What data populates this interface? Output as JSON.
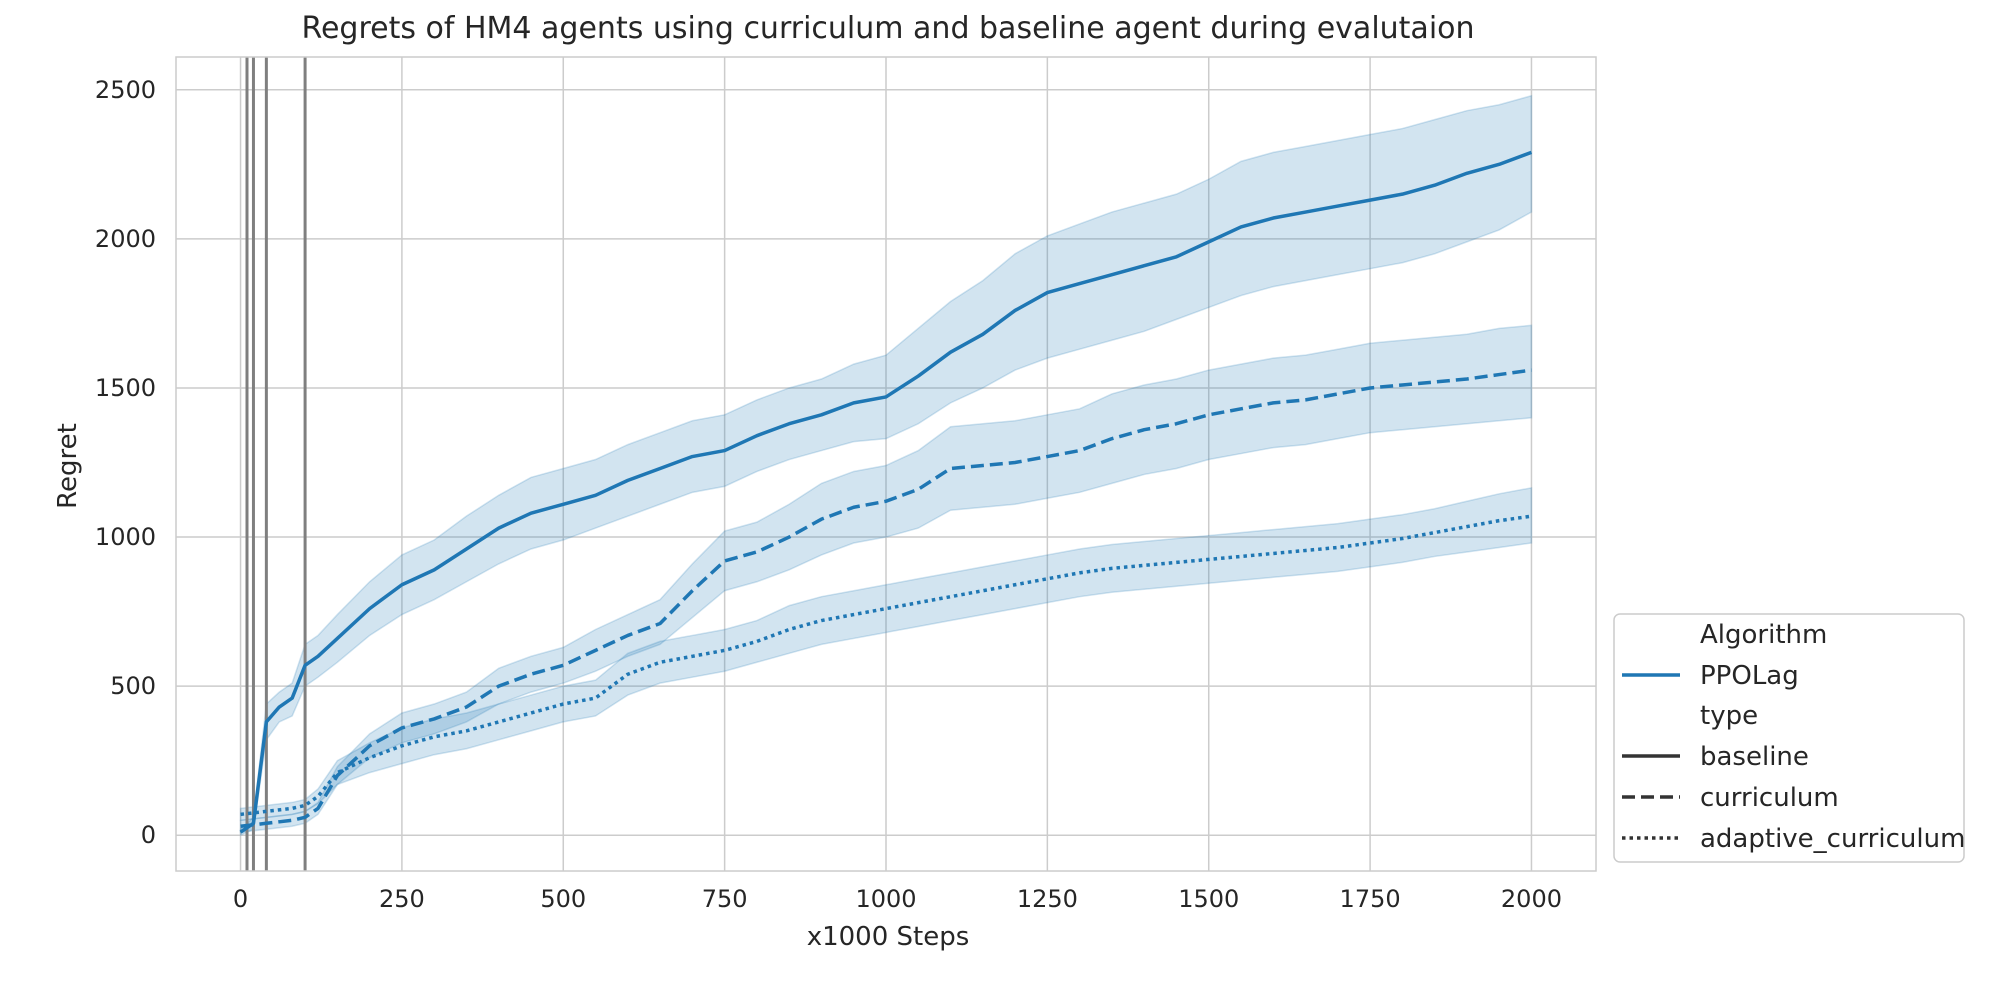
{
  "chart_data": {
    "type": "line",
    "title": "Regrets of HM4 agents using curriculum and baseline agent during evalutaion",
    "xlabel": "x1000 Steps",
    "ylabel": "Regret",
    "xlim": [
      -100,
      2100
    ],
    "ylim": [
      -120,
      2610
    ],
    "xticks": [
      0,
      250,
      500,
      750,
      1000,
      1250,
      1500,
      1750,
      2000
    ],
    "yticks": [
      0,
      500,
      1000,
      1500,
      2000,
      2500
    ],
    "grid": true,
    "vlines": [
      10,
      20,
      40,
      100
    ],
    "x": [
      0,
      20,
      40,
      60,
      80,
      100,
      120,
      150,
      200,
      250,
      300,
      350,
      400,
      450,
      500,
      550,
      600,
      650,
      700,
      750,
      800,
      850,
      900,
      950,
      1000,
      1050,
      1100,
      1150,
      1200,
      1250,
      1300,
      1350,
      1400,
      1450,
      1500,
      1550,
      1600,
      1650,
      1700,
      1750,
      1800,
      1850,
      1900,
      1950,
      2000
    ],
    "series": [
      {
        "name": "baseline",
        "style": "solid",
        "values": [
          10,
          40,
          380,
          430,
          460,
          570,
          600,
          660,
          760,
          840,
          890,
          960,
          1030,
          1080,
          1110,
          1140,
          1190,
          1230,
          1270,
          1290,
          1340,
          1380,
          1410,
          1450,
          1470,
          1540,
          1620,
          1680,
          1760,
          1820,
          1850,
          1880,
          1910,
          1940,
          1990,
          2040,
          2070,
          2090,
          2110,
          2130,
          2150,
          2180,
          2220,
          2250,
          2290
        ],
        "lower": [
          0,
          20,
          320,
          380,
          400,
          500,
          530,
          580,
          670,
          740,
          790,
          850,
          910,
          960,
          990,
          1030,
          1070,
          1110,
          1150,
          1170,
          1220,
          1260,
          1290,
          1320,
          1330,
          1380,
          1450,
          1500,
          1560,
          1600,
          1630,
          1660,
          1690,
          1730,
          1770,
          1810,
          1840,
          1860,
          1880,
          1900,
          1920,
          1950,
          1990,
          2030,
          2090
        ],
        "upper": [
          20,
          60,
          440,
          480,
          510,
          640,
          670,
          740,
          850,
          940,
          990,
          1070,
          1140,
          1200,
          1230,
          1260,
          1310,
          1350,
          1390,
          1410,
          1460,
          1500,
          1530,
          1580,
          1610,
          1700,
          1790,
          1860,
          1950,
          2010,
          2050,
          2090,
          2120,
          2150,
          2200,
          2260,
          2290,
          2310,
          2330,
          2350,
          2370,
          2400,
          2430,
          2450,
          2480
        ]
      },
      {
        "name": "curriculum",
        "style": "dashed",
        "values": [
          30,
          35,
          40,
          45,
          50,
          60,
          90,
          200,
          300,
          360,
          390,
          430,
          500,
          540,
          570,
          620,
          670,
          710,
          820,
          920,
          950,
          1000,
          1060,
          1100,
          1120,
          1160,
          1230,
          1240,
          1250,
          1270,
          1290,
          1330,
          1360,
          1380,
          1410,
          1430,
          1450,
          1460,
          1480,
          1500,
          1510,
          1520,
          1530,
          1545,
          1560
        ],
        "lower": [
          10,
          15,
          20,
          25,
          30,
          40,
          70,
          170,
          260,
          310,
          340,
          380,
          440,
          480,
          510,
          550,
          600,
          640,
          730,
          820,
          850,
          890,
          940,
          980,
          1000,
          1030,
          1090,
          1100,
          1110,
          1130,
          1150,
          1180,
          1210,
          1230,
          1260,
          1280,
          1300,
          1310,
          1330,
          1350,
          1360,
          1370,
          1380,
          1390,
          1400
        ],
        "upper": [
          50,
          55,
          60,
          65,
          70,
          80,
          110,
          230,
          340,
          410,
          440,
          480,
          560,
          600,
          630,
          690,
          740,
          790,
          910,
          1020,
          1050,
          1110,
          1180,
          1220,
          1240,
          1290,
          1370,
          1380,
          1390,
          1410,
          1430,
          1480,
          1510,
          1530,
          1560,
          1580,
          1600,
          1610,
          1630,
          1650,
          1660,
          1670,
          1680,
          1700,
          1710
        ]
      },
      {
        "name": "adaptive_curriculum",
        "style": "dotted",
        "values": [
          70,
          75,
          80,
          85,
          90,
          100,
          130,
          210,
          260,
          300,
          330,
          350,
          380,
          410,
          440,
          460,
          540,
          580,
          600,
          620,
          650,
          690,
          720,
          740,
          760,
          780,
          800,
          820,
          840,
          860,
          880,
          895,
          905,
          915,
          925,
          935,
          945,
          955,
          965,
          980,
          995,
          1015,
          1035,
          1055,
          1070
        ],
        "lower": [
          50,
          55,
          60,
          65,
          70,
          80,
          105,
          170,
          210,
          240,
          270,
          290,
          320,
          350,
          380,
          400,
          470,
          510,
          530,
          550,
          580,
          610,
          640,
          660,
          680,
          700,
          720,
          740,
          760,
          780,
          800,
          815,
          825,
          835,
          845,
          855,
          865,
          875,
          885,
          900,
          915,
          935,
          950,
          965,
          980
        ],
        "upper": [
          90,
          95,
          100,
          105,
          110,
          120,
          155,
          250,
          310,
          360,
          390,
          410,
          440,
          470,
          500,
          520,
          610,
          650,
          670,
          690,
          720,
          770,
          800,
          820,
          840,
          860,
          880,
          900,
          920,
          940,
          960,
          975,
          985,
          995,
          1005,
          1015,
          1025,
          1035,
          1045,
          1060,
          1075,
          1095,
          1120,
          1145,
          1165
        ]
      }
    ],
    "legend": {
      "placement": "outside-right-bottom",
      "title1": "Algorithm",
      "algorithm": "PPOLag",
      "title2": "type",
      "entries": [
        "baseline",
        "curriculum",
        "adaptive_curriculum"
      ]
    },
    "colors": {
      "line": "#1f77b4",
      "band": "#1f77b4",
      "vline": "#7f7f7f",
      "grid": "#cccccc",
      "legend_line": "#333333"
    }
  }
}
